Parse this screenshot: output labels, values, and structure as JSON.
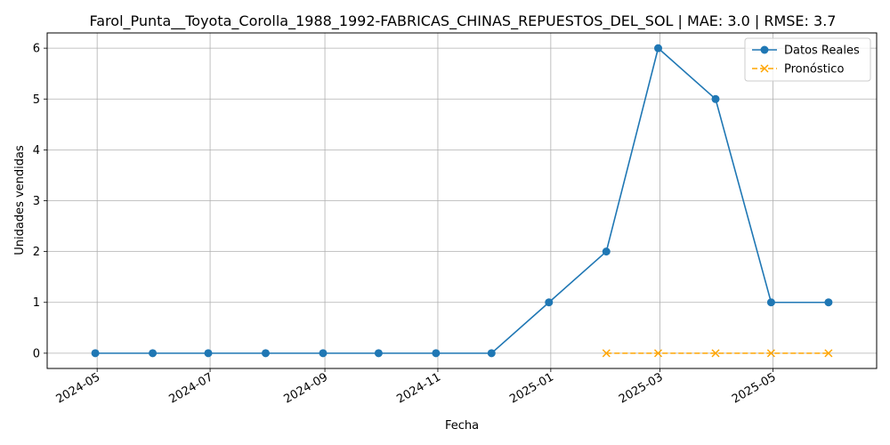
{
  "chart_data": {
    "type": "line",
    "title": "Farol_Punta__Toyota_Corolla_1988_1992-FABRICAS_CHINAS_REPUESTOS_DEL_SOL | MAE: 3.0 | RMSE: 3.7",
    "xlabel": "Fecha",
    "ylabel": "Unidades vendidas",
    "ylim": [
      -0.3,
      6.3
    ],
    "xlim": [
      "2024-04-04",
      "2025-06-26"
    ],
    "grid": true,
    "legend": "top-right",
    "x_ticks": [
      "2024-05",
      "2024-07",
      "2024-09",
      "2024-11",
      "2025-01",
      "2025-03",
      "2025-05"
    ],
    "x_tick_dates": [
      "2024-05-01",
      "2024-07-01",
      "2024-09-01",
      "2024-11-01",
      "2025-01-01",
      "2025-03-01",
      "2025-05-01"
    ],
    "y_ticks": [
      0,
      1,
      2,
      3,
      4,
      5,
      6
    ],
    "series": [
      {
        "name": "Datos Reales",
        "color": "#1f77b4",
        "marker": "circle",
        "linestyle": "solid",
        "x": [
          "2024-04-30",
          "2024-05-31",
          "2024-06-30",
          "2024-07-31",
          "2024-08-31",
          "2024-09-30",
          "2024-10-31",
          "2024-11-30",
          "2024-12-31",
          "2025-01-31",
          "2025-02-28",
          "2025-03-31",
          "2025-04-30",
          "2025-05-31"
        ],
        "values": [
          0,
          0,
          0,
          0,
          0,
          0,
          0,
          0,
          1,
          2,
          6,
          5,
          1,
          1
        ]
      },
      {
        "name": "Pronóstico",
        "color": "#ffa500",
        "marker": "x",
        "linestyle": "dashed",
        "x": [
          "2025-01-31",
          "2025-02-28",
          "2025-03-31",
          "2025-04-30",
          "2025-05-31"
        ],
        "values": [
          0,
          0,
          0,
          0,
          0
        ]
      }
    ]
  }
}
